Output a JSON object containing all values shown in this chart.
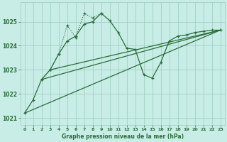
{
  "xlabel": "Graphe pression niveau de la mer (hPa)",
  "ylim": [
    1020.7,
    1025.8
  ],
  "xlim": [
    -0.5,
    23.5
  ],
  "bg_color": "#c8ece6",
  "grid_color": "#99ccbb",
  "line_color": "#2a6e3a",
  "xticks": [
    0,
    1,
    2,
    3,
    4,
    5,
    6,
    7,
    8,
    9,
    10,
    11,
    12,
    13,
    14,
    15,
    16,
    17,
    18,
    19,
    20,
    21,
    22,
    23
  ],
  "yticks": [
    1021,
    1022,
    1023,
    1024,
    1025
  ],
  "series_main": [
    1021.2,
    1021.75,
    1022.6,
    1023.0,
    1023.65,
    1024.2,
    1024.4,
    1024.9,
    1025.0,
    1025.35,
    1025.05,
    1024.55,
    1023.9,
    1023.85,
    1022.8,
    1022.65,
    1023.3,
    1024.2,
    1024.4,
    1024.45,
    1024.55,
    1024.6,
    1024.65,
    1024.65
  ],
  "series_dotted_x": [
    2,
    3,
    4,
    5,
    6,
    7,
    8,
    9
  ],
  "series_dotted_y": [
    1022.6,
    1023.0,
    1023.65,
    1024.85,
    1024.35,
    1025.35,
    1025.15,
    1025.35
  ],
  "trend1_x": [
    0,
    23
  ],
  "trend1_y": [
    1021.2,
    1024.65
  ],
  "trend2_x": [
    2,
    23
  ],
  "trend2_y": [
    1022.6,
    1024.65
  ],
  "trend3_x": [
    3,
    23
  ],
  "trend3_y": [
    1023.0,
    1024.65
  ]
}
